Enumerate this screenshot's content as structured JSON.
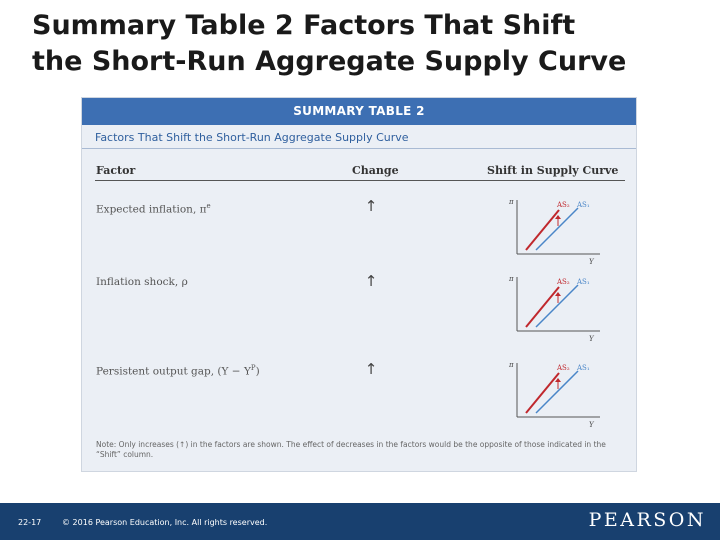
{
  "slide": {
    "title_line1": "Summary Table 2 Factors That Shift",
    "title_line2": "the Short-Run Aggregate Supply Curve"
  },
  "table": {
    "header": "SUMMARY TABLE 2",
    "subtitle": "Factors That Shift the Short-Run Aggregate Supply Curve",
    "columns": [
      "Factor",
      "Change",
      "Shift in Supply Curve"
    ],
    "rows": [
      {
        "factor": "Expected inflation, π",
        "factor_sup": "e",
        "change": "↑",
        "graph": {
          "y_axis": "π",
          "x_axis": "Y",
          "curve_new": "AS₂",
          "curve_old": "AS₁"
        }
      },
      {
        "factor": "Inflation shock, ρ",
        "factor_sup": "",
        "change": "↑",
        "graph": {
          "y_axis": "π",
          "x_axis": "Y",
          "curve_new": "AS₂",
          "curve_old": "AS₁"
        }
      },
      {
        "factor": "Persistent output gap, (Y − Y",
        "factor_sup": "P",
        "factor_tail": ")",
        "change": "↑",
        "graph": {
          "y_axis": "π",
          "x_axis": "Y",
          "curve_new": "AS₂",
          "curve_old": "AS₁"
        }
      }
    ],
    "note": "Note: Only increases (↑) in the factors are shown. The effect of decreases in the factors would be the opposite of those indicated in the “Shift” column."
  },
  "footer": {
    "page": "22-17",
    "copyright": "© 2016 Pearson Education, Inc. All rights reserved.",
    "logo": "PEARSON"
  },
  "colors": {
    "header_blue": "#3d6fb3",
    "footer_navy": "#18406f",
    "curve_new_red": "#c0282d",
    "curve_old_blue": "#4a86c8"
  }
}
